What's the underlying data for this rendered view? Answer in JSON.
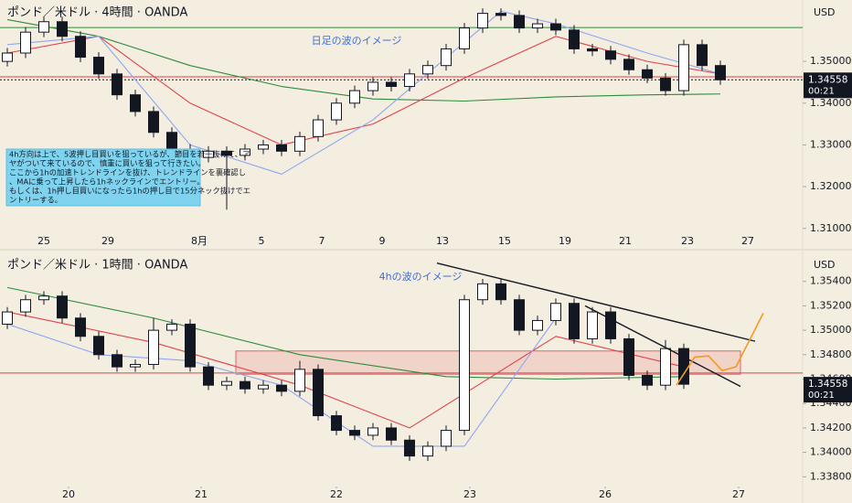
{
  "chart_data": [
    {
      "type": "candlestick",
      "title": "ポンド／米ドル · 4時間 · OANDA",
      "currency": "USD",
      "annotation": "日足の波のイメージ",
      "note": [
        "4h方向は上で、5波押し目買いを狙っているが、節目を若干抜けて、ア",
        "ヤがついて来ているので、慎重に買いを狙って行きたい。",
        "ここから1hの加速トレンドラインを抜け、トレンドラインを裏確認し",
        "、MAに乗って上昇したら1hネックラインでエントリー。",
        "もしくは、1h押し目買いになったら1hの押し目で15分ネック抜けでエ",
        "ントリーする。"
      ],
      "xlim": [
        -0.4,
        43.5
      ],
      "xticks": [
        {
          "value": 2.0,
          "label": "25"
        },
        {
          "value": 5.5,
          "label": "29"
        },
        {
          "value": 10.5,
          "label": "8月"
        },
        {
          "value": 13.9,
          "label": "5"
        },
        {
          "value": 17.2,
          "label": "7"
        },
        {
          "value": 20.5,
          "label": "9"
        },
        {
          "value": 23.8,
          "label": "13"
        },
        {
          "value": 27.2,
          "label": "15"
        },
        {
          "value": 30.5,
          "label": "19"
        },
        {
          "value": 33.8,
          "label": "21"
        },
        {
          "value": 37.2,
          "label": "23"
        },
        {
          "value": 40.5,
          "label": "27"
        }
      ],
      "ylim": [
        1.3082,
        1.3647
      ],
      "yticks": [
        {
          "value": 1.35,
          "label": "1.35000"
        },
        {
          "value": 1.34,
          "label": "1.34000"
        },
        {
          "value": 1.33,
          "label": "1.33000"
        },
        {
          "value": 1.32,
          "label": "1.32000"
        },
        {
          "value": 1.31,
          "label": "1.31000"
        }
      ],
      "up_color": "#ffffff",
      "down_color": "#131722",
      "candles": {
        "open": [
          1.35,
          1.352,
          1.357,
          1.3595,
          1.356,
          1.351,
          1.347,
          1.342,
          1.338,
          1.333,
          1.329,
          1.327,
          1.3285,
          1.3275,
          1.329,
          1.33,
          1.3285,
          1.332,
          1.336,
          1.34,
          1.343,
          1.345,
          1.344,
          1.347,
          1.349,
          1.353,
          1.358,
          1.3615,
          1.361,
          1.358,
          1.359,
          1.3575,
          1.353,
          1.3525,
          1.3505,
          1.348,
          1.346,
          1.343,
          1.354,
          1.349
        ],
        "high": [
          1.3532,
          1.3582,
          1.3607,
          1.3607,
          1.3572,
          1.3522,
          1.3482,
          1.3432,
          1.3392,
          1.3342,
          1.3302,
          1.3297,
          1.3297,
          1.3302,
          1.3312,
          1.3312,
          1.3332,
          1.3372,
          1.3412,
          1.3442,
          1.3462,
          1.3462,
          1.3482,
          1.3502,
          1.3542,
          1.3592,
          1.3627,
          1.3627,
          1.3622,
          1.3602,
          1.3602,
          1.3587,
          1.3542,
          1.3537,
          1.3517,
          1.3492,
          1.3472,
          1.3552,
          1.3552,
          1.3502
        ],
        "low": [
          1.3488,
          1.3508,
          1.3558,
          1.3548,
          1.3498,
          1.3458,
          1.3408,
          1.3368,
          1.3318,
          1.3278,
          1.3258,
          1.3258,
          1.3145,
          1.3263,
          1.3278,
          1.3273,
          1.3273,
          1.3308,
          1.3348,
          1.3388,
          1.3418,
          1.3428,
          1.3428,
          1.3458,
          1.3478,
          1.3518,
          1.3568,
          1.3598,
          1.3568,
          1.3568,
          1.3563,
          1.3518,
          1.3513,
          1.3493,
          1.3468,
          1.3448,
          1.3418,
          1.3418,
          1.3478,
          1.3444
        ],
        "close": [
          1.352,
          1.357,
          1.3595,
          1.356,
          1.351,
          1.347,
          1.342,
          1.338,
          1.333,
          1.329,
          1.327,
          1.3285,
          1.3275,
          1.329,
          1.33,
          1.3285,
          1.332,
          1.336,
          1.34,
          1.343,
          1.345,
          1.344,
          1.347,
          1.349,
          1.353,
          1.358,
          1.3615,
          1.361,
          1.358,
          1.359,
          1.3575,
          1.353,
          1.3525,
          1.3505,
          1.348,
          1.346,
          1.343,
          1.354,
          1.349,
          1.3456
        ]
      },
      "moving_averages": [
        {
          "color": "#2e8b3a",
          "x": [
            0,
            5,
            10,
            15,
            20,
            25,
            30,
            35,
            39
          ],
          "values": [
            1.36,
            1.356,
            1.349,
            1.344,
            1.341,
            1.3405,
            1.3415,
            1.342,
            1.3422
          ]
        },
        {
          "color": "#e0424a",
          "x": [
            0,
            5,
            10,
            15,
            20,
            25,
            30,
            35,
            39
          ],
          "values": [
            1.352,
            1.356,
            1.34,
            1.33,
            1.335,
            1.346,
            1.356,
            1.35,
            1.347
          ]
        },
        {
          "color": "#8fa6f0",
          "x": [
            0,
            5,
            10,
            15,
            20,
            27,
            30,
            35,
            39
          ],
          "values": [
            1.354,
            1.356,
            1.33,
            1.323,
            1.336,
            1.362,
            1.359,
            1.352,
            1.347
          ]
        }
      ],
      "hlines": [
        {
          "value": 1.3581,
          "color": "#2e8b3a",
          "dash": false
        },
        {
          "value": 1.3463,
          "color": "#e0424a",
          "dash": false
        },
        {
          "value": 1.34558,
          "color": "#131722",
          "dash": true
        }
      ],
      "last_price": {
        "value": 1.34558,
        "label": "1.34558"
      },
      "countdown": "00:21"
    },
    {
      "type": "candlestick",
      "title": "ポンド／米ドル · 1時間 · OANDA",
      "currency": "USD",
      "annotation": "4hの波のイメージ",
      "xlim": [
        -0.4,
        43.5
      ],
      "xticks": [
        {
          "value": 3.35,
          "label": "20"
        },
        {
          "value": 10.6,
          "label": "21"
        },
        {
          "value": 18.0,
          "label": "22"
        },
        {
          "value": 25.3,
          "label": "23"
        },
        {
          "value": 32.7,
          "label": "26"
        },
        {
          "value": 40.0,
          "label": "27"
        }
      ],
      "ylim": [
        1.3372,
        1.356
      ],
      "yticks": [
        {
          "value": 1.354,
          "label": "1.35400"
        },
        {
          "value": 1.352,
          "label": "1.35200"
        },
        {
          "value": 1.35,
          "label": "1.35000"
        },
        {
          "value": 1.348,
          "label": "1.34800"
        },
        {
          "value": 1.346,
          "label": "1.34600"
        },
        {
          "value": 1.344,
          "label": "1.34400"
        },
        {
          "value": 1.342,
          "label": "1.34200"
        },
        {
          "value": 1.34,
          "label": "1.34000"
        },
        {
          "value": 1.338,
          "label": "1.33800"
        }
      ],
      "up_color": "#ffffff",
      "down_color": "#131722",
      "candles": {
        "open": [
          1.3505,
          1.3515,
          1.3525,
          1.3528,
          1.351,
          1.3495,
          1.348,
          1.347,
          1.3472,
          1.35,
          1.3505,
          1.347,
          1.3455,
          1.3458,
          1.3452,
          1.3455,
          1.345,
          1.3468,
          1.343,
          1.3418,
          1.3414,
          1.342,
          1.341,
          1.3397,
          1.3405,
          1.3418,
          1.3525,
          1.3538,
          1.3525,
          1.35,
          1.3508,
          1.3522,
          1.3493,
          1.3515,
          1.3493,
          1.3463,
          1.3455,
          1.3485
        ],
        "high": [
          1.3519,
          1.3529,
          1.3532,
          1.3532,
          1.3514,
          1.3499,
          1.3484,
          1.3476,
          1.351,
          1.3509,
          1.3509,
          1.3474,
          1.3462,
          1.3462,
          1.3459,
          1.3459,
          1.3475,
          1.3472,
          1.3434,
          1.3422,
          1.3424,
          1.3424,
          1.3414,
          1.3409,
          1.3422,
          1.3529,
          1.3542,
          1.3542,
          1.3529,
          1.3512,
          1.3526,
          1.3526,
          1.3519,
          1.3519,
          1.3497,
          1.3467,
          1.3492,
          1.3489
        ],
        "low": [
          1.3501,
          1.3511,
          1.3521,
          1.3506,
          1.3491,
          1.3476,
          1.3466,
          1.3466,
          1.3468,
          1.3496,
          1.3466,
          1.3451,
          1.3451,
          1.3448,
          1.3448,
          1.3446,
          1.3446,
          1.3426,
          1.3414,
          1.341,
          1.341,
          1.3406,
          1.3393,
          1.3393,
          1.3401,
          1.3414,
          1.3521,
          1.3521,
          1.3496,
          1.3496,
          1.3504,
          1.3489,
          1.3489,
          1.3489,
          1.3459,
          1.3451,
          1.3451,
          1.3452
        ],
        "close": [
          1.3515,
          1.3525,
          1.3528,
          1.351,
          1.3495,
          1.348,
          1.347,
          1.3472,
          1.35,
          1.3505,
          1.347,
          1.3455,
          1.3458,
          1.3452,
          1.3455,
          1.345,
          1.3468,
          1.343,
          1.3418,
          1.3414,
          1.342,
          1.341,
          1.3397,
          1.3405,
          1.3418,
          1.3525,
          1.3538,
          1.3525,
          1.35,
          1.3508,
          1.3522,
          1.3493,
          1.3515,
          1.3493,
          1.3463,
          1.3455,
          1.3485,
          1.34558
        ]
      },
      "moving_averages": [
        {
          "color": "#2e8b3a",
          "x": [
            0,
            8,
            16,
            24,
            30,
            37
          ],
          "values": [
            1.3535,
            1.351,
            1.348,
            1.3462,
            1.346,
            1.3462
          ]
        },
        {
          "color": "#e0424a",
          "x": [
            0,
            8,
            16,
            22,
            30,
            37
          ],
          "values": [
            1.3515,
            1.349,
            1.3455,
            1.342,
            1.3495,
            1.347
          ]
        },
        {
          "color": "#8fa6f0",
          "x": [
            0,
            5,
            10,
            15,
            20,
            25,
            30
          ],
          "values": [
            1.3505,
            1.348,
            1.3475,
            1.3455,
            1.3405,
            1.3405,
            1.351
          ]
        }
      ],
      "hlines": [
        {
          "value": 1.3465,
          "color": "#e0424a",
          "dash": false
        }
      ],
      "zone": {
        "x": [
          12.5,
          40.1
        ],
        "values": [
          1.3464,
          1.3483
        ],
        "color": "#e0424a"
      },
      "trendlines": [
        {
          "x": [
            23.5,
            40.9
          ],
          "values": [
            1.3555,
            1.3491
          ],
          "color": "#131722"
        },
        {
          "x": [
            31.6,
            40.1
          ],
          "values": [
            1.352,
            1.3454
          ],
          "color": "#131722"
        }
      ],
      "projection": {
        "color": "#f29a1f",
        "x": [
          36.6,
          37.6,
          38.35,
          39.1,
          39.85,
          41.35
        ],
        "values": [
          1.3455,
          1.3478,
          1.3479,
          1.3467,
          1.347,
          1.3514
        ]
      },
      "last_price": {
        "value": 1.34558,
        "label": "1.34558"
      },
      "countdown": "00:21"
    }
  ]
}
